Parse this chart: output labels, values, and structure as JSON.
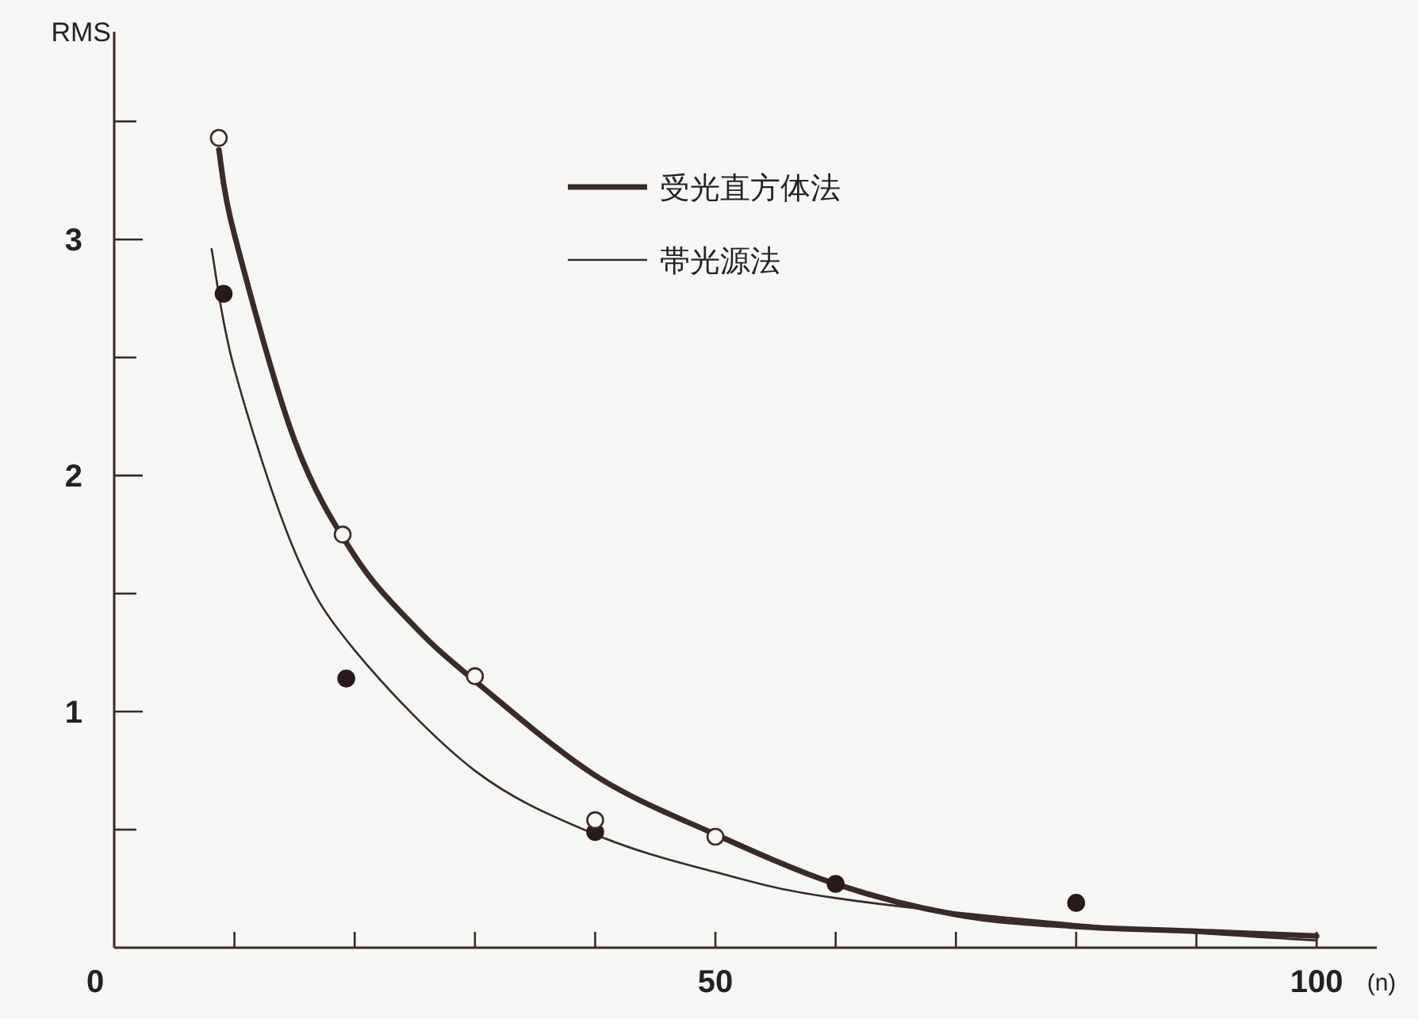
{
  "chart_data": {
    "type": "line",
    "xlabel": "(n)",
    "ylabel": "RMS",
    "xlim": [
      0,
      105
    ],
    "ylim": [
      0,
      3.88
    ],
    "xticks": [
      0,
      {
        "value": 10,
        "label": null
      },
      {
        "value": 20,
        "label": null
      },
      {
        "value": 30,
        "label": null
      },
      {
        "value": 40,
        "label": null
      },
      50,
      {
        "value": 60,
        "label": null
      },
      {
        "value": 70,
        "label": null
      },
      {
        "value": 80,
        "label": null
      },
      {
        "value": 90,
        "label": null
      },
      100
    ],
    "yticks": [
      {
        "value": 0.5,
        "label": null
      },
      1,
      {
        "value": 1.5,
        "label": null
      },
      2,
      {
        "value": 2.5,
        "label": null
      },
      3,
      {
        "value": 3.5,
        "label": null
      }
    ],
    "legend": "top",
    "grid": false,
    "series": [
      {
        "name": "受光直方体法",
        "type": "line",
        "color": "#3a2a2a",
        "x": [
          8.7,
          10,
          15,
          20,
          25,
          30,
          40,
          50,
          60,
          70,
          80,
          90,
          100
        ],
        "values": [
          3.38,
          3.02,
          2.15,
          1.66,
          1.36,
          1.13,
          0.73,
          0.48,
          0.27,
          0.14,
          0.09,
          0.07,
          0.05
        ]
      },
      {
        "name": "帯光源法",
        "type": "line",
        "color": "#3a2a2a",
        "x": [
          8.1,
          10,
          15,
          20,
          30,
          40,
          50,
          60,
          80,
          100
        ],
        "values": [
          2.96,
          2.45,
          1.68,
          1.26,
          0.75,
          0.48,
          0.32,
          0.21,
          0.1,
          0.03
        ]
      },
      {
        "type": "scatter",
        "marker": "circle",
        "color": "#3a2a2a",
        "x": [
          8.7,
          19,
          30,
          40,
          50
        ],
        "values": [
          3.43,
          1.75,
          1.15,
          0.54,
          0.47
        ]
      },
      {
        "type": "scatter",
        "marker": "circle",
        "color": "#2a1a1a",
        "x": [
          9.1,
          19.3,
          40,
          60,
          80
        ],
        "values": [
          2.77,
          1.14,
          0.49,
          0.27,
          0.19
        ]
      }
    ]
  }
}
